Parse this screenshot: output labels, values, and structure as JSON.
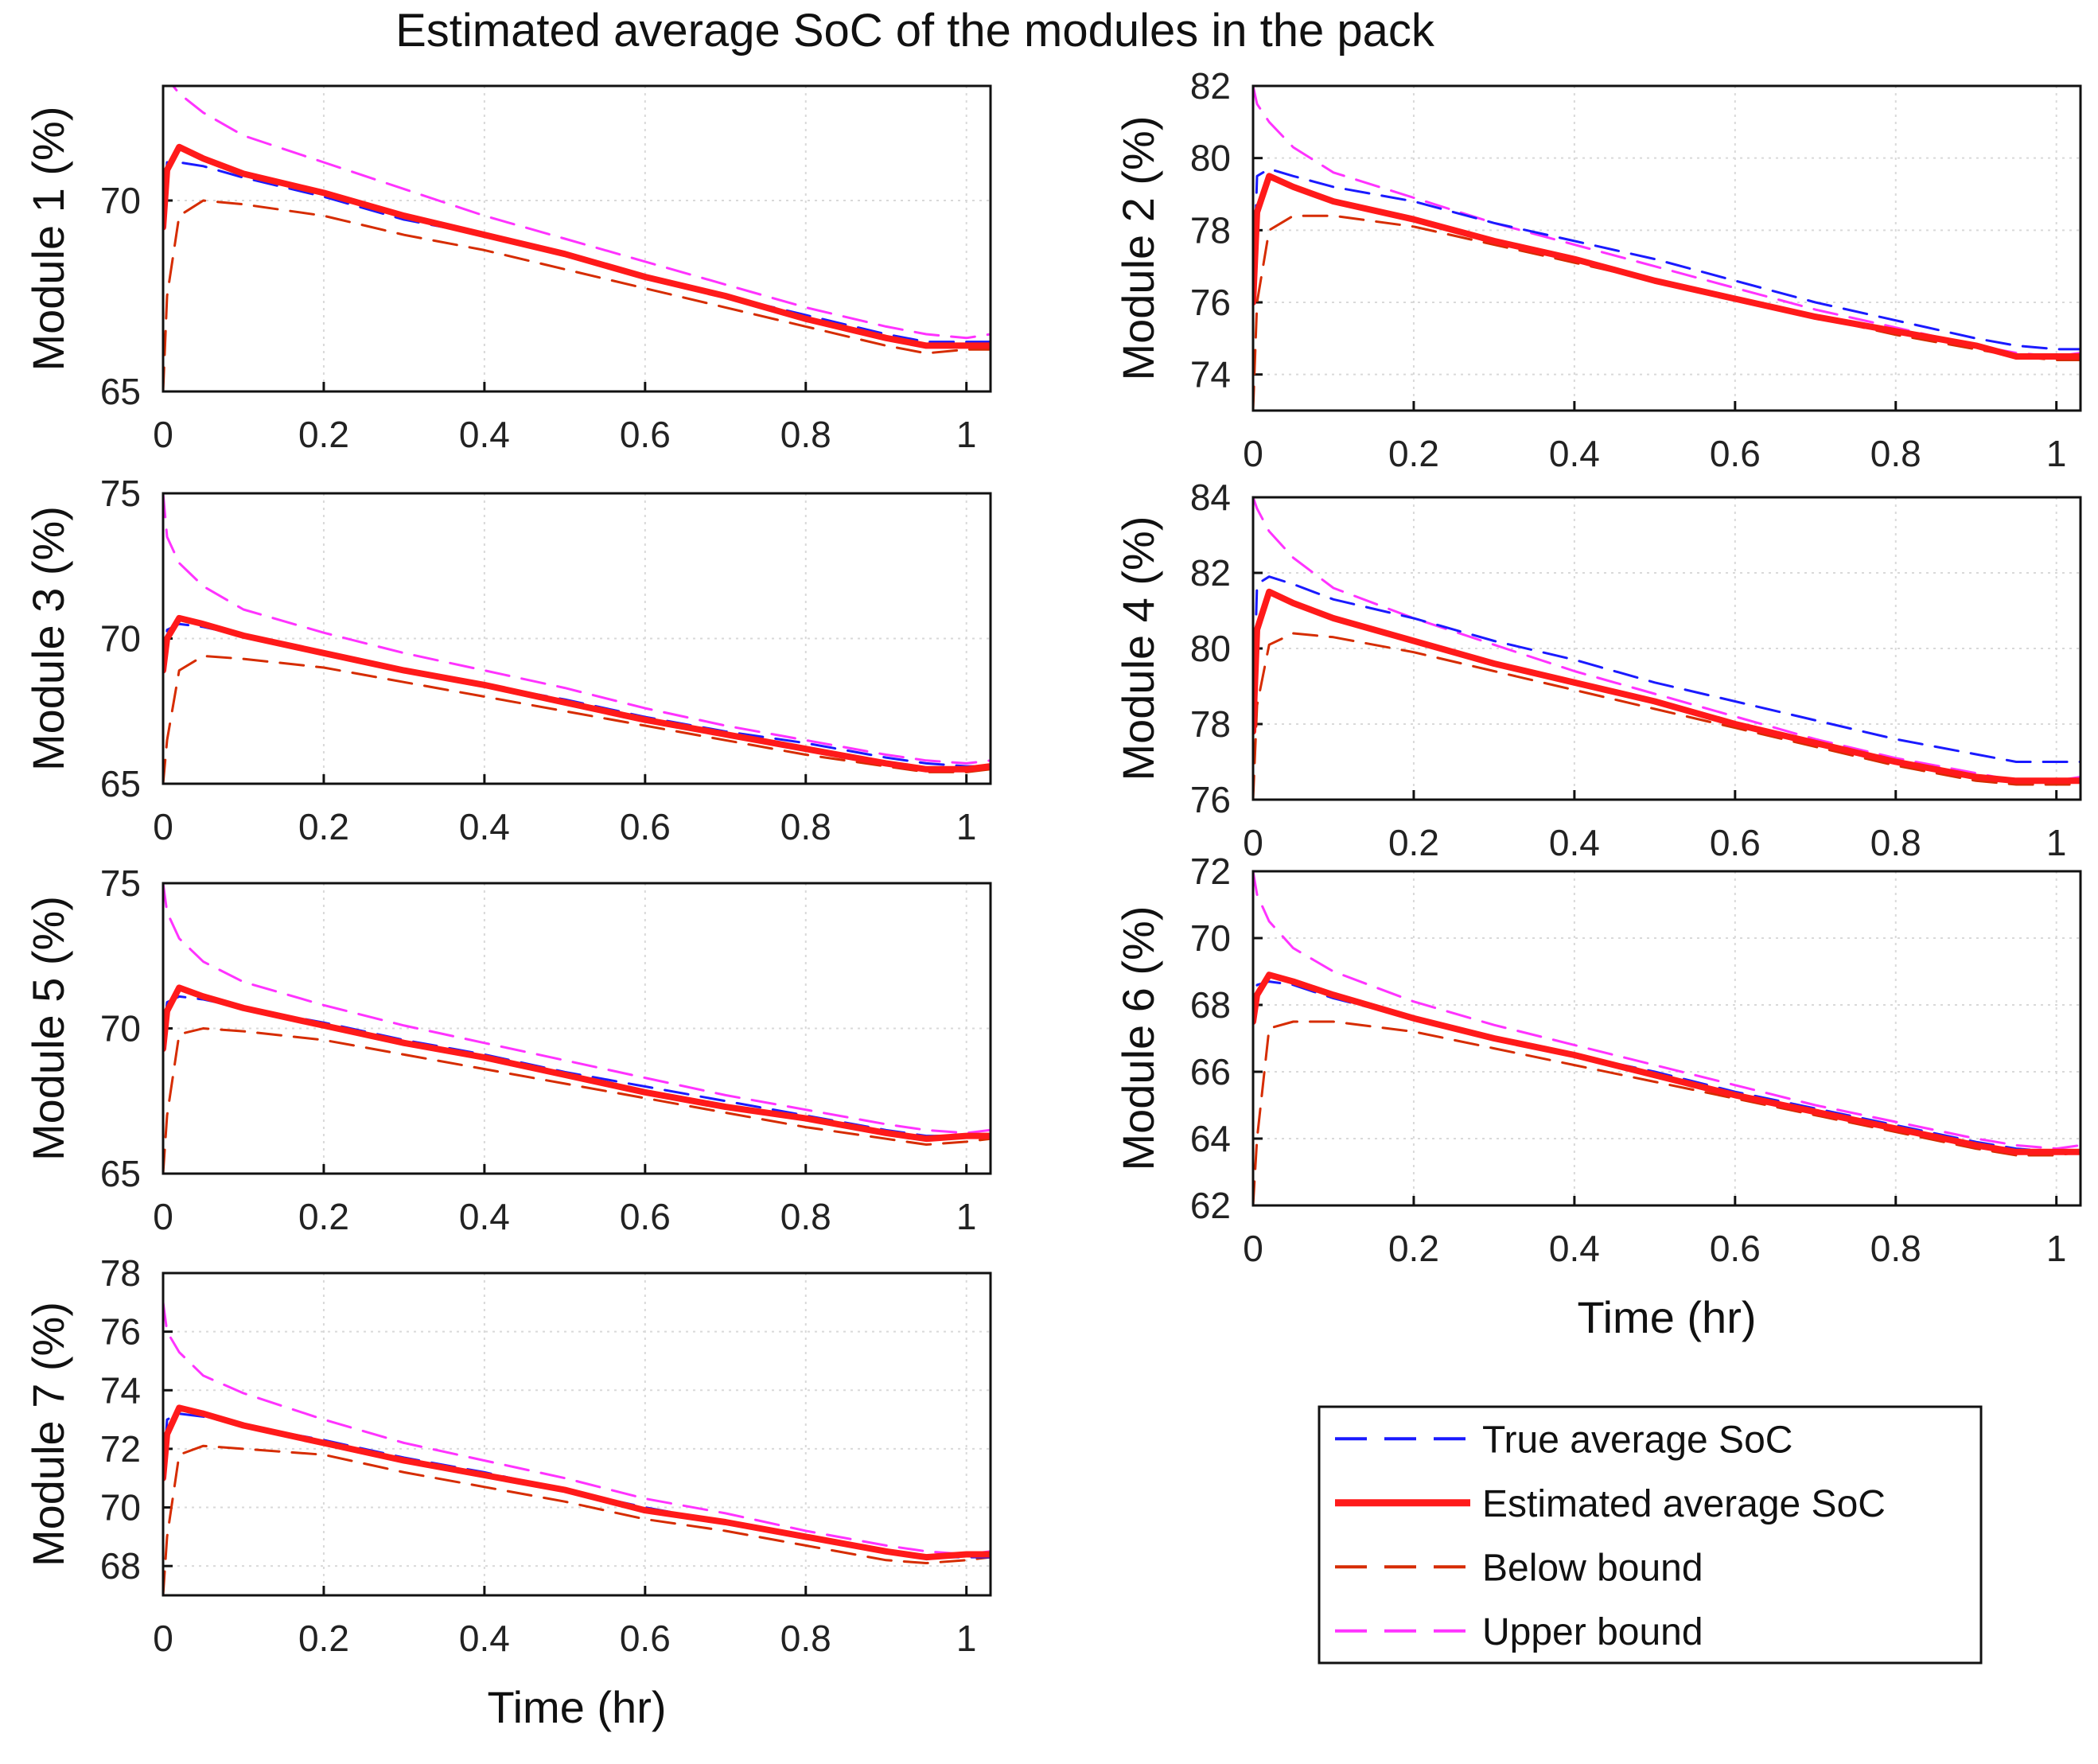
{
  "figure_title": "Estimated average SoC of the modules in the pack",
  "chart_data": [
    {
      "type": "line",
      "panel": 1,
      "ylabel": "Module 1 (%)",
      "xlabel": "",
      "xlim": [
        0,
        1.03
      ],
      "ylim": [
        65,
        73
      ],
      "xticks": [
        "0",
        "0.2",
        "0.4",
        "0.6",
        "0.8",
        "1"
      ],
      "yticks": [
        "65",
        "70"
      ],
      "x": [
        0,
        0.005,
        0.02,
        0.05,
        0.1,
        0.2,
        0.3,
        0.4,
        0.5,
        0.6,
        0.7,
        0.8,
        0.9,
        0.95,
        1.0,
        1.03
      ],
      "series": [
        {
          "name": "True average SoC",
          "values": [
            69.5,
            71.0,
            71.0,
            70.9,
            70.6,
            70.1,
            69.5,
            69.1,
            68.6,
            68.0,
            67.5,
            67.0,
            66.5,
            66.3,
            66.3,
            66.3
          ]
        },
        {
          "name": "Estimated average SoC",
          "values": [
            69.3,
            70.8,
            71.4,
            71.1,
            70.7,
            70.2,
            69.6,
            69.1,
            68.6,
            68.0,
            67.5,
            66.9,
            66.4,
            66.2,
            66.2,
            66.2
          ]
        },
        {
          "name": "Below bound",
          "values": [
            65.0,
            67.5,
            69.6,
            70.0,
            69.9,
            69.6,
            69.1,
            68.7,
            68.2,
            67.7,
            67.2,
            66.7,
            66.2,
            66.0,
            66.1,
            66.1
          ]
        },
        {
          "name": "Upper bound",
          "values": [
            73.0,
            73.2,
            72.8,
            72.3,
            71.7,
            71.0,
            70.3,
            69.6,
            69.0,
            68.4,
            67.8,
            67.2,
            66.7,
            66.5,
            66.4,
            66.5
          ]
        }
      ]
    },
    {
      "type": "line",
      "panel": 2,
      "ylabel": "Module 2 (%)",
      "xlabel": "",
      "xlim": [
        0,
        1.03
      ],
      "ylim": [
        73,
        82
      ],
      "xticks": [
        "0",
        "0.2",
        "0.4",
        "0.6",
        "0.8",
        "1"
      ],
      "yticks": [
        "74",
        "76",
        "78",
        "80",
        "82"
      ],
      "x": [
        0,
        0.005,
        0.02,
        0.05,
        0.1,
        0.2,
        0.3,
        0.4,
        0.5,
        0.6,
        0.7,
        0.8,
        0.9,
        0.95,
        1.0,
        1.03
      ],
      "series": [
        {
          "name": "True average SoC",
          "values": [
            76.0,
            79.5,
            79.7,
            79.5,
            79.2,
            78.8,
            78.2,
            77.7,
            77.2,
            76.6,
            76.0,
            75.5,
            75.0,
            74.8,
            74.7,
            74.7
          ]
        },
        {
          "name": "Estimated average SoC",
          "values": [
            76.0,
            78.5,
            79.5,
            79.2,
            78.8,
            78.3,
            77.7,
            77.2,
            76.6,
            76.1,
            75.6,
            75.2,
            74.8,
            74.5,
            74.5,
            74.5
          ]
        },
        {
          "name": "Below bound",
          "values": [
            73.0,
            76.0,
            78.0,
            78.4,
            78.4,
            78.1,
            77.6,
            77.1,
            76.6,
            76.1,
            75.6,
            75.1,
            74.7,
            74.5,
            74.4,
            74.4
          ]
        },
        {
          "name": "Upper bound",
          "values": [
            82.0,
            81.5,
            81.0,
            80.3,
            79.6,
            78.9,
            78.2,
            77.6,
            77.0,
            76.4,
            75.8,
            75.3,
            74.8,
            74.6,
            74.5,
            74.6
          ]
        }
      ]
    },
    {
      "type": "line",
      "panel": 3,
      "ylabel": "Module 3 (%)",
      "xlabel": "",
      "xlim": [
        0,
        1.03
      ],
      "ylim": [
        65,
        75
      ],
      "xticks": [
        "0",
        "0.2",
        "0.4",
        "0.6",
        "0.8",
        "1"
      ],
      "yticks": [
        "65",
        "70",
        "75"
      ],
      "x": [
        0,
        0.005,
        0.02,
        0.05,
        0.1,
        0.2,
        0.3,
        0.4,
        0.5,
        0.6,
        0.7,
        0.8,
        0.9,
        0.95,
        1.0,
        1.03
      ],
      "series": [
        {
          "name": "True average SoC",
          "values": [
            69.0,
            70.3,
            70.5,
            70.4,
            70.1,
            69.5,
            68.9,
            68.4,
            67.9,
            67.3,
            66.8,
            66.4,
            65.9,
            65.7,
            65.6,
            65.6
          ]
        },
        {
          "name": "Estimated average SoC",
          "values": [
            68.9,
            70.0,
            70.7,
            70.5,
            70.1,
            69.5,
            68.9,
            68.4,
            67.8,
            67.2,
            66.7,
            66.2,
            65.7,
            65.5,
            65.5,
            65.6
          ]
        },
        {
          "name": "Below bound",
          "values": [
            65.0,
            66.5,
            68.9,
            69.4,
            69.3,
            69.0,
            68.5,
            68.0,
            67.5,
            67.0,
            66.5,
            66.0,
            65.6,
            65.4,
            65.4,
            65.5
          ]
        },
        {
          "name": "Upper bound",
          "values": [
            75.0,
            73.5,
            72.6,
            71.8,
            71.0,
            70.2,
            69.5,
            68.9,
            68.3,
            67.6,
            67.0,
            66.5,
            66.0,
            65.8,
            65.7,
            65.8
          ]
        }
      ]
    },
    {
      "type": "line",
      "panel": 4,
      "ylabel": "Module 4 (%)",
      "xlabel": "",
      "xlim": [
        0,
        1.03
      ],
      "ylim": [
        76,
        84
      ],
      "xticks": [
        "0",
        "0.2",
        "0.4",
        "0.6",
        "0.8",
        "1"
      ],
      "yticks": [
        "76",
        "78",
        "80",
        "82",
        "84"
      ],
      "x": [
        0,
        0.005,
        0.02,
        0.05,
        0.1,
        0.2,
        0.3,
        0.4,
        0.5,
        0.6,
        0.7,
        0.8,
        0.9,
        0.95,
        1.0,
        1.03
      ],
      "series": [
        {
          "name": "True average SoC",
          "values": [
            78.0,
            81.7,
            81.9,
            81.7,
            81.3,
            80.8,
            80.2,
            79.7,
            79.1,
            78.6,
            78.1,
            77.6,
            77.2,
            77.0,
            77.0,
            77.0
          ]
        },
        {
          "name": "Estimated average SoC",
          "values": [
            77.8,
            80.5,
            81.5,
            81.2,
            80.8,
            80.2,
            79.6,
            79.1,
            78.6,
            78.0,
            77.5,
            77.0,
            76.6,
            76.5,
            76.5,
            76.5
          ]
        },
        {
          "name": "Below bound",
          "values": [
            76.0,
            78.5,
            80.1,
            80.4,
            80.3,
            79.9,
            79.4,
            78.9,
            78.4,
            77.9,
            77.4,
            76.9,
            76.5,
            76.4,
            76.4,
            76.4
          ]
        },
        {
          "name": "Upper bound",
          "values": [
            84.0,
            83.7,
            83.1,
            82.4,
            81.6,
            80.8,
            80.1,
            79.4,
            78.8,
            78.2,
            77.6,
            77.1,
            76.7,
            76.5,
            76.5,
            76.6
          ]
        }
      ]
    },
    {
      "type": "line",
      "panel": 5,
      "ylabel": "Module 5 (%)",
      "xlabel": "",
      "xlim": [
        0,
        1.03
      ],
      "ylim": [
        65,
        75
      ],
      "xticks": [
        "0",
        "0.2",
        "0.4",
        "0.6",
        "0.8",
        "1"
      ],
      "yticks": [
        "65",
        "70",
        "75"
      ],
      "x": [
        0,
        0.005,
        0.02,
        0.05,
        0.1,
        0.2,
        0.3,
        0.4,
        0.5,
        0.6,
        0.7,
        0.8,
        0.9,
        0.95,
        1.0,
        1.03
      ],
      "series": [
        {
          "name": "True average SoC",
          "values": [
            69.5,
            70.9,
            71.1,
            71.0,
            70.7,
            70.2,
            69.6,
            69.1,
            68.5,
            68.0,
            67.5,
            67.0,
            66.5,
            66.3,
            66.3,
            66.3
          ]
        },
        {
          "name": "Estimated average SoC",
          "values": [
            69.3,
            70.6,
            71.4,
            71.1,
            70.7,
            70.1,
            69.5,
            69.0,
            68.4,
            67.8,
            67.3,
            66.9,
            66.4,
            66.2,
            66.3,
            66.3
          ]
        },
        {
          "name": "Below bound",
          "values": [
            65.0,
            67.0,
            69.8,
            70.0,
            69.9,
            69.6,
            69.1,
            68.6,
            68.1,
            67.6,
            67.1,
            66.6,
            66.2,
            66.0,
            66.1,
            66.2
          ]
        },
        {
          "name": "Upper bound",
          "values": [
            75.0,
            74.0,
            73.1,
            72.3,
            71.6,
            70.8,
            70.1,
            69.5,
            68.9,
            68.3,
            67.7,
            67.2,
            66.7,
            66.5,
            66.4,
            66.5
          ]
        }
      ]
    },
    {
      "type": "line",
      "panel": 6,
      "ylabel": "Module 6 (%)",
      "xlabel": "Time (hr)",
      "xlim": [
        0,
        1.03
      ],
      "ylim": [
        62,
        72
      ],
      "xticks": [
        "0",
        "0.2",
        "0.4",
        "0.6",
        "0.8",
        "1"
      ],
      "yticks": [
        "62",
        "64",
        "66",
        "68",
        "70",
        "72"
      ],
      "x": [
        0,
        0.005,
        0.02,
        0.05,
        0.1,
        0.2,
        0.3,
        0.4,
        0.5,
        0.6,
        0.7,
        0.8,
        0.9,
        0.95,
        1.0,
        1.03
      ],
      "series": [
        {
          "name": "True average SoC",
          "values": [
            67.5,
            68.6,
            68.7,
            68.6,
            68.2,
            67.6,
            67.0,
            66.5,
            66.0,
            65.4,
            64.9,
            64.4,
            63.9,
            63.7,
            63.6,
            63.6
          ]
        },
        {
          "name": "Estimated average SoC",
          "values": [
            67.5,
            68.3,
            68.9,
            68.7,
            68.3,
            67.6,
            67.0,
            66.5,
            65.9,
            65.3,
            64.8,
            64.3,
            63.8,
            63.6,
            63.6,
            63.6
          ]
        },
        {
          "name": "Below bound",
          "values": [
            62.0,
            64.0,
            67.3,
            67.5,
            67.5,
            67.2,
            66.7,
            66.2,
            65.7,
            65.2,
            64.7,
            64.2,
            63.7,
            63.5,
            63.5,
            63.6
          ]
        },
        {
          "name": "Upper bound",
          "values": [
            72.0,
            71.3,
            70.5,
            69.7,
            69.0,
            68.1,
            67.4,
            66.8,
            66.2,
            65.6,
            65.0,
            64.5,
            64.0,
            63.8,
            63.7,
            63.8
          ]
        }
      ]
    },
    {
      "type": "line",
      "panel": 7,
      "ylabel": "Module 7 (%)",
      "xlabel": "Time (hr)",
      "xlim": [
        0,
        1.03
      ],
      "ylim": [
        67,
        78
      ],
      "xticks": [
        "0",
        "0.2",
        "0.4",
        "0.6",
        "0.8",
        "1"
      ],
      "yticks": [
        "68",
        "70",
        "72",
        "74",
        "76",
        "78"
      ],
      "x": [
        0,
        0.005,
        0.02,
        0.05,
        0.1,
        0.2,
        0.3,
        0.4,
        0.5,
        0.6,
        0.7,
        0.8,
        0.9,
        0.95,
        1.0,
        1.03
      ],
      "series": [
        {
          "name": "True average SoC",
          "values": [
            71.0,
            73.0,
            73.2,
            73.1,
            72.8,
            72.3,
            71.7,
            71.2,
            70.6,
            70.0,
            69.5,
            69.0,
            68.5,
            68.3,
            68.3,
            68.3
          ]
        },
        {
          "name": "Estimated average SoC",
          "values": [
            71.0,
            72.5,
            73.4,
            73.2,
            72.8,
            72.2,
            71.6,
            71.1,
            70.6,
            69.9,
            69.5,
            69.0,
            68.5,
            68.3,
            68.4,
            68.4
          ]
        },
        {
          "name": "Below bound",
          "values": [
            67.0,
            69.0,
            71.8,
            72.1,
            72.0,
            71.8,
            71.2,
            70.7,
            70.2,
            69.6,
            69.2,
            68.7,
            68.2,
            68.1,
            68.2,
            68.3
          ]
        },
        {
          "name": "Upper bound",
          "values": [
            77.0,
            76.0,
            75.3,
            74.5,
            73.9,
            73.0,
            72.2,
            71.6,
            71.0,
            70.3,
            69.8,
            69.2,
            68.7,
            68.5,
            68.4,
            68.5
          ]
        }
      ]
    }
  ],
  "legend": {
    "entries": [
      {
        "label": "True average SoC",
        "color": "#1a1aff",
        "style": "dashed",
        "width": 3
      },
      {
        "label": "Estimated average SoC",
        "color": "#ff1a1a",
        "style": "solid",
        "width": 8
      },
      {
        "label": "Below bound",
        "color": "#d62c00",
        "style": "dashed",
        "width": 3
      },
      {
        "label": "Upper bound",
        "color": "#ff33ff",
        "style": "dashed",
        "width": 3
      }
    ]
  }
}
